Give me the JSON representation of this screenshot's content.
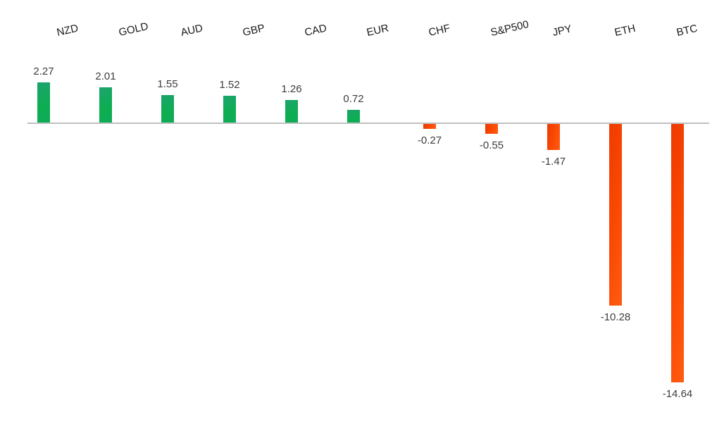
{
  "chart_data": {
    "type": "bar",
    "categories": [
      "NZD",
      "GOLD",
      "AUD",
      "GBP",
      "CAD",
      "EUR",
      "CHF",
      "S&P500",
      "JPY",
      "ETH",
      "BTC"
    ],
    "values": [
      2.27,
      2.01,
      1.55,
      1.52,
      1.26,
      0.72,
      -0.27,
      -0.55,
      -1.47,
      -10.28,
      -14.64
    ],
    "value_labels": [
      "2.27",
      "2.01",
      "1.55",
      "1.52",
      "1.26",
      "0.72",
      "-0.27",
      "-0.55",
      "-1.47",
      "-10.28",
      "-14.64"
    ],
    "title": "",
    "xlabel": "",
    "ylabel": "",
    "ylim": [
      -17,
      3.5
    ],
    "grid": false,
    "legend": "none",
    "data_labels": true,
    "category_axis_position": "top",
    "positive_color": "#0fad52",
    "negative_color": "#fa4a04",
    "axis_line_color": "#c0c0c0",
    "value_label_color": "#3d3d3d",
    "category_label_color": "#1a1a1a"
  }
}
